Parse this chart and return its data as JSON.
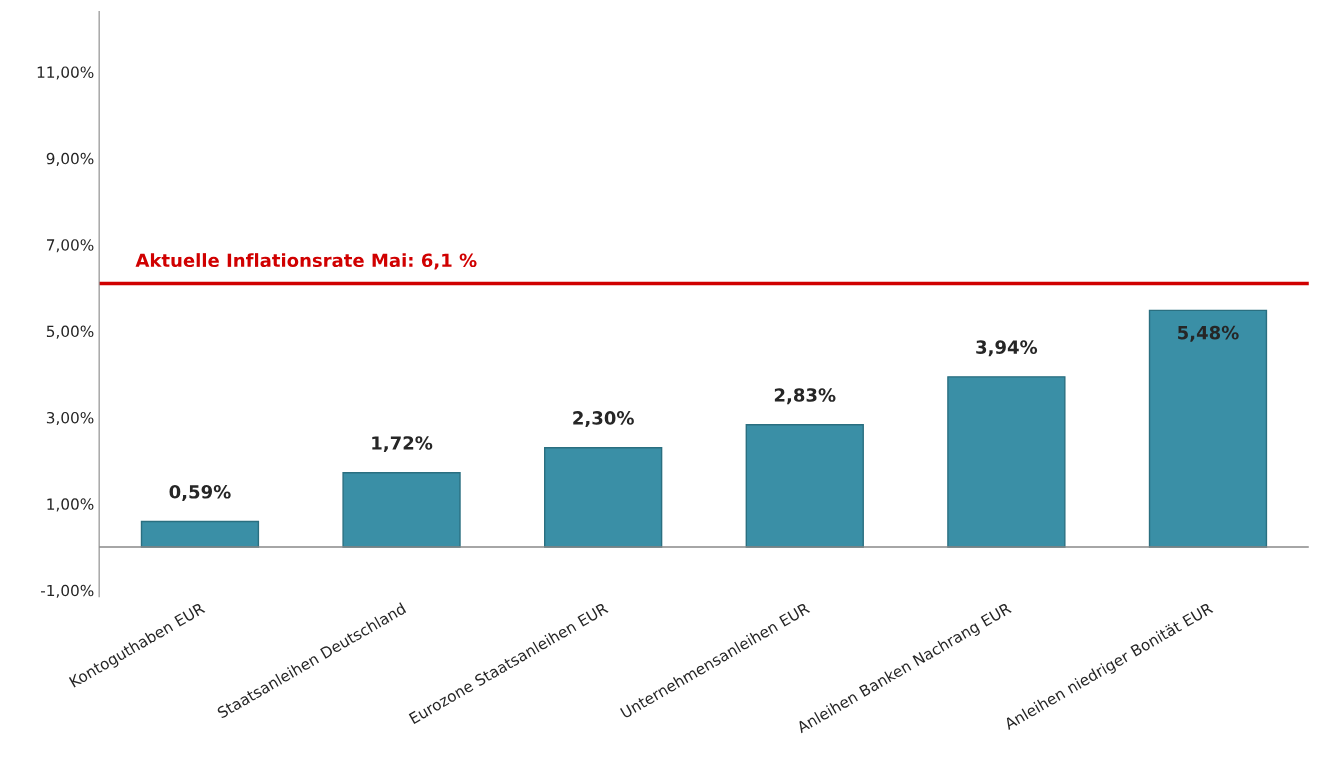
{
  "chart_data": {
    "type": "bar",
    "categories": [
      "Kontoguthaben EUR",
      "Staatsanleihen Deutschland",
      "Eurozone Staatsanleihen EUR",
      "Unternehmensanleihen EUR",
      "Anleihen Banken Nachrang EUR",
      "Anleihen niedriger Bonität EUR"
    ],
    "values": [
      0.59,
      1.72,
      2.3,
      2.83,
      3.94,
      5.48
    ],
    "value_labels": [
      "0,59%",
      "1,72%",
      "2,30%",
      "2,83%",
      "3,94%",
      "5,48%"
    ],
    "color": "#3a8fa6",
    "ylim": [
      -1.15,
      12.4
    ],
    "yticks": [
      {
        "value": -1,
        "label": "-1,00%"
      },
      {
        "value": 1,
        "label": "1,00%"
      },
      {
        "value": 3,
        "label": "3,00%"
      },
      {
        "value": 5,
        "label": "5,00%"
      },
      {
        "value": 7,
        "label": "7,00%"
      },
      {
        "value": 9,
        "label": "9,00%"
      },
      {
        "value": 11,
        "label": "11,00%"
      }
    ],
    "ref_lines": [
      {
        "axis": "y",
        "value": 6.1,
        "label": "Aktuelle Inflationsrate Mai: 6,1 %",
        "color": "#d00000"
      }
    ],
    "grid": false,
    "legend": false
  }
}
